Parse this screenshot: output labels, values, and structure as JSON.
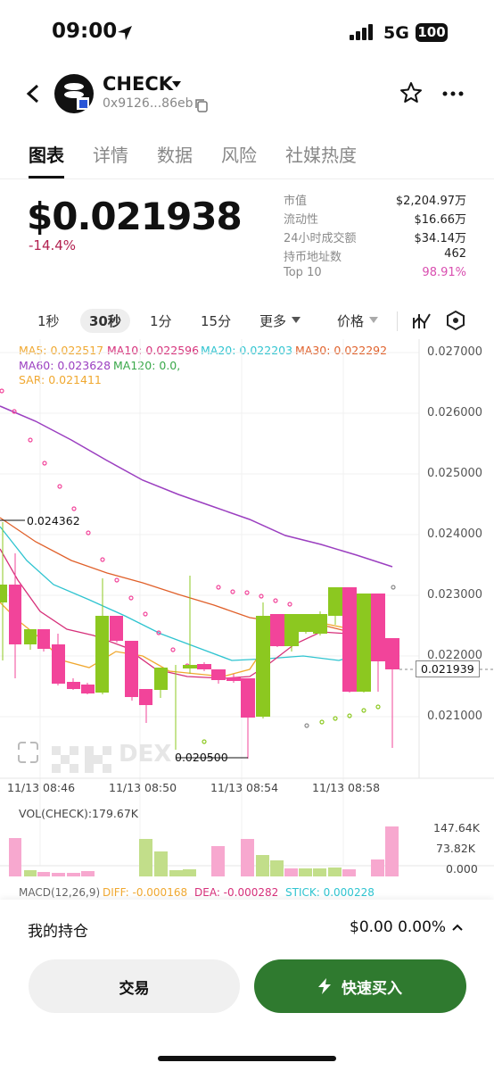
{
  "status": {
    "time": "09:00",
    "network": "5G",
    "battery": "100"
  },
  "header": {
    "title": "CHECK",
    "address": "0x9126...86eb"
  },
  "tabs": [
    "图表",
    "详情",
    "数据",
    "风险",
    "社媒热度"
  ],
  "price": {
    "value": "$0.021938",
    "change": "-14.4%"
  },
  "stats": [
    {
      "label": "市值",
      "value": "$2,204.97万"
    },
    {
      "label": "流动性",
      "value": "$16.66万"
    },
    {
      "label": "24小时成交额",
      "value": "$34.14万"
    },
    {
      "label": "持币地址数",
      "value": "462"
    },
    {
      "label": "Top 10",
      "value": "98.91%"
    }
  ],
  "timeframes": [
    "1秒",
    "30秒",
    "1分",
    "15分",
    "更多"
  ],
  "price_selector": "价格",
  "indicators": {
    "ma5": "MA5: 0.022517",
    "ma10": "MA10: 0.022596",
    "ma20": "MA20: 0.022203",
    "ma30": "MA30: 0.022292",
    "ma60": "MA60: 0.023628",
    "ma120": "MA120: 0.0,",
    "sar": "SAR: 0.021411"
  },
  "colors": {
    "up": "#8cc820",
    "down": "#f2449a",
    "ma5": "#f0a830",
    "ma10": "#d6307a",
    "ma20": "#2fc4d0",
    "ma30": "#e0602a",
    "ma60": "#9b3fc0",
    "ma120": "#3aa84a",
    "buy": "#2f7a2f"
  },
  "chart_data": {
    "type": "candlestick",
    "y_ticks": [
      "0.027000",
      "0.026000",
      "0.025000",
      "0.024000",
      "0.023000",
      "0.022000",
      "0.021000"
    ],
    "x_labels": [
      "11/13 08:46",
      "11/13 08:50",
      "11/13 08:54",
      "11/13 08:58"
    ],
    "high_marker": "0.024362",
    "low_marker": "0.020500",
    "current_price": "0.021939",
    "watermark": "DEX",
    "volume_label": "VOL(CHECK):179.67K",
    "volume_ticks": [
      "147.64K",
      "73.82K",
      "0.000"
    ],
    "macd_label": "MACD(12,26,9)",
    "macd_diff": "DIFF: -0.000168",
    "macd_dea": "DEA: -0.000282",
    "macd_stick": "STICK: 0.000228"
  },
  "bottom": {
    "holdings_label": "我的持仓",
    "holdings_value": "$0.00 0.00%",
    "trade_button": "交易",
    "quick_buy_button": "快速买入"
  }
}
